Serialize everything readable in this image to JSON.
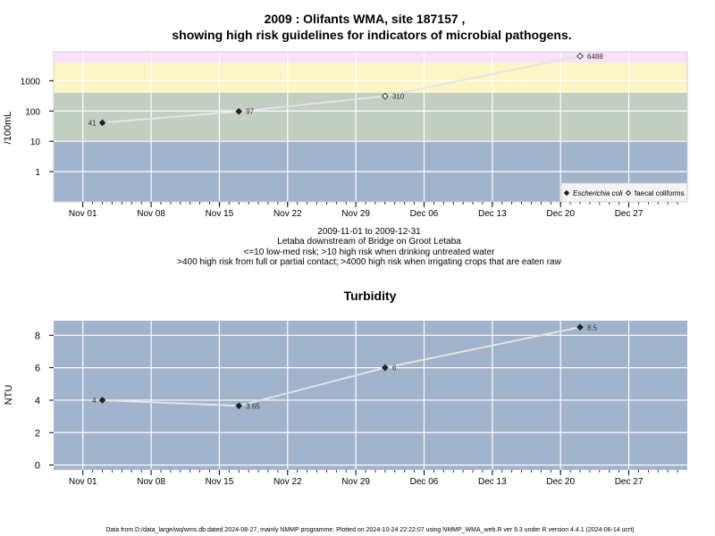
{
  "header": {
    "title_line1": "2009 : Olifants WMA, site 187157 ,",
    "title_line2": "showing high risk guidelines for indicators of microbial pathogens."
  },
  "captions": {
    "line1": "2009-11-01 to 2009-12-31",
    "line2": "Letaba downstream of Bridge on Groot Letaba",
    "line3": "<=10 low-med risk; >10 high risk when drinking untreated water",
    "line4": ">400 high risk from full or partial contact; >4000 high risk when irrigating crops that are eaten raw"
  },
  "footer": {
    "text": "Data from D:/data_large/wq/wms.db dated 2024-08-27, mainly NMMP programme. Plotted on 2024-10-24 22:22:07 using NMMP_WMA_web.R ver 9.3 under R version 4.4.1 (2024-06-14 ucrt)"
  },
  "chart_data": [
    {
      "type": "line",
      "title": "",
      "ylabel": "/100mL",
      "xlabel": "",
      "y_scale": "log",
      "xlim": [
        "2009-10-29",
        "2010-01-02"
      ],
      "ylim": [
        0.1,
        9000
      ],
      "grid": true,
      "x_ticks": [
        "Nov 01",
        "Nov 08",
        "Nov 15",
        "Nov 22",
        "Nov 29",
        "Dec 06",
        "Dec 13",
        "Dec 20",
        "Dec 27"
      ],
      "x_tick_dates": [
        "2009-11-01",
        "2009-11-08",
        "2009-11-15",
        "2009-11-22",
        "2009-11-29",
        "2009-12-06",
        "2009-12-13",
        "2009-12-20",
        "2009-12-27"
      ],
      "y_ticks": [
        "1",
        "10",
        "100",
        "1000"
      ],
      "y_tick_values": [
        1,
        10,
        100,
        1000
      ],
      "risk_bands": [
        {
          "from": 0.1,
          "to": 10,
          "color": "#a2b4cc"
        },
        {
          "from": 10,
          "to": 400,
          "color": "#c3cfc3"
        },
        {
          "from": 400,
          "to": 4000,
          "color": "#fbf6c6"
        },
        {
          "from": 4000,
          "to": 9000,
          "color": "#fbe0fa"
        }
      ],
      "legend_position": "bottom-right",
      "series": [
        {
          "name": "Escherichia coli",
          "marker": "filled-diamond",
          "x": [
            "2009-11-03",
            "2009-11-17"
          ],
          "values": [
            41,
            97
          ],
          "labels": [
            "41",
            "97"
          ]
        },
        {
          "name": "faecal coliforms",
          "marker": "open-diamond",
          "x": [
            "2009-12-02",
            "2009-12-22"
          ],
          "values": [
            310,
            6488
          ],
          "labels": [
            "310",
            "6488"
          ]
        }
      ],
      "line_color": "#e4e4e4"
    },
    {
      "type": "line",
      "title": "Turbidity",
      "ylabel": "NTU",
      "xlabel": "",
      "xlim": [
        "2009-10-29",
        "2010-01-02"
      ],
      "ylim": [
        -0.3,
        8.9
      ],
      "grid": true,
      "background": "#a2b4cc",
      "x_ticks": [
        "Nov 01",
        "Nov 08",
        "Nov 15",
        "Nov 22",
        "Nov 29",
        "Dec 06",
        "Dec 13",
        "Dec 20",
        "Dec 27"
      ],
      "x_tick_dates": [
        "2009-11-01",
        "2009-11-08",
        "2009-11-15",
        "2009-11-22",
        "2009-11-29",
        "2009-12-06",
        "2009-12-13",
        "2009-12-20",
        "2009-12-27"
      ],
      "y_ticks": [
        "0",
        "2",
        "4",
        "6",
        "8"
      ],
      "y_tick_values": [
        0,
        2,
        4,
        6,
        8
      ],
      "series": [
        {
          "x": [
            "2009-11-03",
            "2009-11-17",
            "2009-12-02",
            "2009-12-22"
          ],
          "values": [
            4,
            3.65,
            6,
            8.5
          ],
          "labels": [
            "4",
            "3.65",
            "6",
            "8.5"
          ]
        }
      ],
      "line_color": "#e4e4e4"
    }
  ]
}
